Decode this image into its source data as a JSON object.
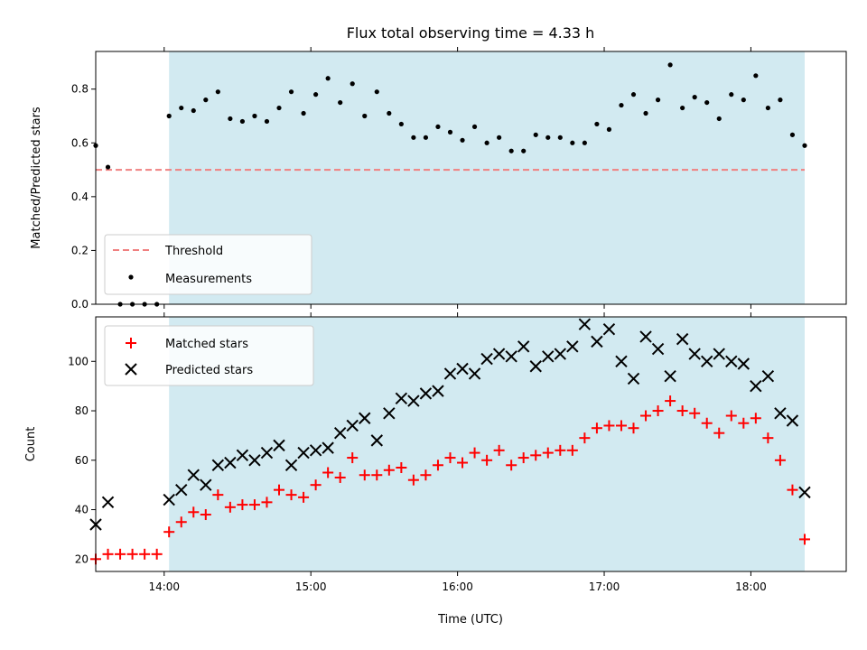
{
  "title": "Flux total observing time = 4.33 h",
  "colors": {
    "shade": "#add8e6",
    "threshold": "#f08080",
    "measurement": "#000000",
    "matched": "#ff0000",
    "predicted": "#000000"
  },
  "chart_data": [
    {
      "type": "scatter",
      "ylabel": "Matched/Predicted stars",
      "xlabel": "",
      "xlim": [
        "13:32",
        "18:39"
      ],
      "ylim": [
        0,
        0.94
      ],
      "yticks": [
        "0.0",
        "0.2",
        "0.4",
        "0.6",
        "0.8"
      ],
      "xticks": [
        "14:00",
        "15:00",
        "16:00",
        "17:00",
        "18:00"
      ],
      "shaded_span": [
        "14:02",
        "18:22"
      ],
      "legend": {
        "placement": "lower-left",
        "threshold_label": "Threshold",
        "measurements_label": "Measurements"
      },
      "threshold": {
        "name": "Threshold",
        "y": 0.5,
        "x": [
          "13:32",
          "18:22"
        ]
      },
      "series": [
        {
          "name": "Measurements",
          "x": [
            "13:32",
            "13:37",
            "13:42",
            "13:47",
            "13:52",
            "13:57",
            "14:02",
            "14:07",
            "14:12",
            "14:17",
            "14:22",
            "14:27",
            "14:32",
            "14:37",
            "14:42",
            "14:47",
            "14:52",
            "14:57",
            "15:02",
            "15:07",
            "15:12",
            "15:17",
            "15:22",
            "15:27",
            "15:32",
            "15:37",
            "15:42",
            "15:47",
            "15:52",
            "15:57",
            "16:02",
            "16:07",
            "16:12",
            "16:17",
            "16:22",
            "16:27",
            "16:32",
            "16:37",
            "16:42",
            "16:47",
            "16:52",
            "16:57",
            "17:02",
            "17:07",
            "17:12",
            "17:17",
            "17:22",
            "17:27",
            "17:32",
            "17:37",
            "17:42",
            "17:47",
            "17:52",
            "17:57",
            "18:02",
            "18:07",
            "18:12",
            "18:17",
            "18:22"
          ],
          "y": [
            0.59,
            0.51,
            0.0,
            0.0,
            0.0,
            0.0,
            0.7,
            0.73,
            0.72,
            0.76,
            0.79,
            0.69,
            0.68,
            0.7,
            0.68,
            0.73,
            0.79,
            0.71,
            0.78,
            0.84,
            0.75,
            0.82,
            0.7,
            0.79,
            0.71,
            0.67,
            0.62,
            0.62,
            0.66,
            0.64,
            0.61,
            0.66,
            0.6,
            0.62,
            0.57,
            0.57,
            0.63,
            0.62,
            0.62,
            0.6,
            0.6,
            0.67,
            0.65,
            0.74,
            0.78,
            0.71,
            0.76,
            0.89,
            0.73,
            0.77,
            0.75,
            0.69,
            0.78,
            0.76,
            0.85,
            0.73,
            0.76,
            0.63,
            0.59
          ]
        }
      ]
    },
    {
      "type": "scatter",
      "ylabel": "Count",
      "xlabel": "Time (UTC)",
      "xlim": [
        "13:32",
        "18:39"
      ],
      "ylim": [
        15,
        118
      ],
      "yticks": [
        "20",
        "40",
        "60",
        "80",
        "100"
      ],
      "xticks": [
        "14:00",
        "15:00",
        "16:00",
        "17:00",
        "18:00"
      ],
      "shaded_span": [
        "14:02",
        "18:22"
      ],
      "legend": {
        "placement": "upper-left",
        "matched_label": "Matched stars",
        "predicted_label": "Predicted stars"
      },
      "series": [
        {
          "name": "Matched stars",
          "x": [
            "13:32",
            "13:37",
            "13:42",
            "13:47",
            "13:52",
            "13:57",
            "14:02",
            "14:07",
            "14:12",
            "14:17",
            "14:22",
            "14:27",
            "14:32",
            "14:37",
            "14:42",
            "14:47",
            "14:52",
            "14:57",
            "15:02",
            "15:07",
            "15:12",
            "15:17",
            "15:22",
            "15:27",
            "15:32",
            "15:37",
            "15:42",
            "15:47",
            "15:52",
            "15:57",
            "16:02",
            "16:07",
            "16:12",
            "16:17",
            "16:22",
            "16:27",
            "16:32",
            "16:37",
            "16:42",
            "16:47",
            "16:52",
            "16:57",
            "17:02",
            "17:07",
            "17:12",
            "17:17",
            "17:22",
            "17:27",
            "17:32",
            "17:37",
            "17:42",
            "17:47",
            "17:52",
            "17:57",
            "18:02",
            "18:07",
            "18:12",
            "18:17",
            "18:22"
          ],
          "y": [
            20,
            22,
            22,
            22,
            22,
            22,
            31,
            35,
            39,
            38,
            46,
            41,
            42,
            42,
            43,
            48,
            46,
            45,
            50,
            55,
            53,
            61,
            54,
            54,
            56,
            57,
            52,
            54,
            58,
            61,
            59,
            63,
            60,
            64,
            58,
            61,
            62,
            63,
            64,
            64,
            69,
            73,
            74,
            74,
            73,
            78,
            80,
            84,
            80,
            79,
            75,
            71,
            78,
            75,
            77,
            69,
            60,
            48,
            28
          ]
        },
        {
          "name": "Predicted stars",
          "x": [
            "13:32",
            "13:37",
            "14:02",
            "14:07",
            "14:12",
            "14:17",
            "14:22",
            "14:27",
            "14:32",
            "14:37",
            "14:42",
            "14:47",
            "14:52",
            "14:57",
            "15:02",
            "15:07",
            "15:12",
            "15:17",
            "15:22",
            "15:27",
            "15:32",
            "15:37",
            "15:42",
            "15:47",
            "15:52",
            "15:57",
            "16:02",
            "16:07",
            "16:12",
            "16:17",
            "16:22",
            "16:27",
            "16:32",
            "16:37",
            "16:42",
            "16:47",
            "16:52",
            "16:57",
            "17:02",
            "17:07",
            "17:12",
            "17:17",
            "17:22",
            "17:27",
            "17:32",
            "17:37",
            "17:42",
            "17:47",
            "17:52",
            "17:57",
            "18:02",
            "18:07",
            "18:12",
            "18:17",
            "18:22"
          ],
          "y": [
            34,
            43,
            44,
            48,
            54,
            50,
            58,
            59,
            62,
            60,
            63,
            66,
            58,
            63,
            64,
            65,
            71,
            74,
            77,
            68,
            79,
            85,
            84,
            87,
            88,
            95,
            97,
            95,
            101,
            103,
            102,
            106,
            98,
            102,
            103,
            106,
            115,
            108,
            113,
            100,
            93,
            110,
            105,
            94,
            109,
            103,
            100,
            103,
            100,
            99,
            90,
            94,
            79,
            76,
            47
          ]
        }
      ]
    }
  ]
}
